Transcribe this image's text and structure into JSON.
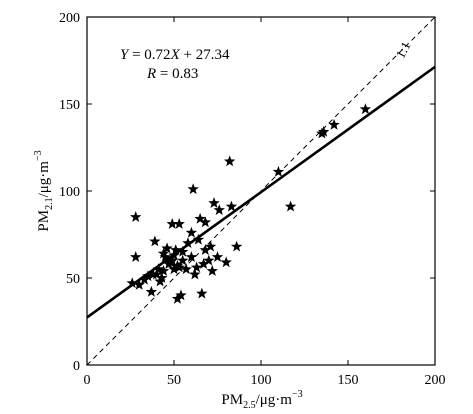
{
  "chart_data": {
    "type": "scatter",
    "title": "",
    "xlabel": {
      "base": "PM",
      "sub": "2.5",
      "units": "/μg·m",
      "sup": "−3"
    },
    "ylabel": {
      "base": "PM",
      "sub": "2.1",
      "units": "/μg·m",
      "sup": "−3"
    },
    "xlim": [
      0,
      200
    ],
    "ylim": [
      0,
      200
    ],
    "x_ticks": [
      0,
      50,
      100,
      150,
      200
    ],
    "y_ticks": [
      0,
      50,
      100,
      150,
      200
    ],
    "grid": false,
    "legend": "none",
    "marker": "star",
    "equation": {
      "y": "Y",
      "eq": " = 0.72",
      "x": "X",
      "rest": " + 27.34"
    },
    "r_text": {
      "r": "R",
      "rest": " = 0.83"
    },
    "fit_line": {
      "slope": 0.72,
      "intercept": 27.34
    },
    "reference_line": {
      "label": "1:1",
      "slope": 1,
      "intercept": 0
    },
    "points": [
      [
        26,
        47
      ],
      [
        28,
        85
      ],
      [
        28,
        62
      ],
      [
        30,
        46
      ],
      [
        33,
        49
      ],
      [
        35,
        51
      ],
      [
        37,
        42
      ],
      [
        38,
        52
      ],
      [
        39,
        71
      ],
      [
        40,
        52
      ],
      [
        41,
        55
      ],
      [
        42,
        48
      ],
      [
        43,
        50
      ],
      [
        44,
        54
      ],
      [
        44,
        64
      ],
      [
        45,
        62
      ],
      [
        46,
        67
      ],
      [
        47,
        58
      ],
      [
        48,
        59
      ],
      [
        49,
        60
      ],
      [
        49,
        81
      ],
      [
        50,
        55
      ],
      [
        50,
        63
      ],
      [
        51,
        66
      ],
      [
        52,
        57
      ],
      [
        52,
        38
      ],
      [
        53,
        56
      ],
      [
        53,
        81
      ],
      [
        54,
        40
      ],
      [
        55,
        65
      ],
      [
        55,
        60
      ],
      [
        57,
        55
      ],
      [
        58,
        70
      ],
      [
        60,
        62
      ],
      [
        60,
        76
      ],
      [
        61,
        101
      ],
      [
        62,
        52
      ],
      [
        63,
        56
      ],
      [
        64,
        72
      ],
      [
        65,
        84
      ],
      [
        66,
        41
      ],
      [
        67,
        58
      ],
      [
        68,
        82
      ],
      [
        68,
        66
      ],
      [
        70,
        60
      ],
      [
        71,
        68
      ],
      [
        72,
        54
      ],
      [
        73,
        93
      ],
      [
        75,
        62
      ],
      [
        76,
        89
      ],
      [
        80,
        59
      ],
      [
        82,
        117
      ],
      [
        83,
        91
      ],
      [
        86,
        68
      ],
      [
        110,
        111
      ],
      [
        117,
        91
      ],
      [
        135,
        133
      ],
      [
        136,
        134
      ],
      [
        142,
        138
      ],
      [
        160,
        147
      ]
    ]
  }
}
